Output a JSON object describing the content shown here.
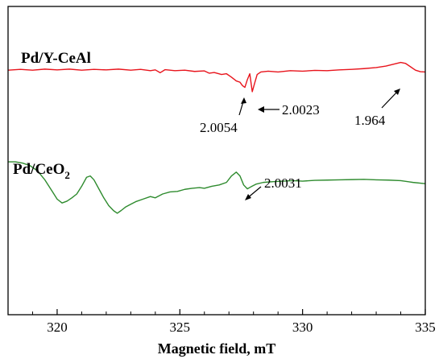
{
  "chart_data": {
    "type": "line",
    "title": "",
    "xlabel": "Magnetic field, mT",
    "ylabel": "",
    "xlim": [
      318,
      335
    ],
    "ylim": [
      0,
      12
    ],
    "x_ticks": [
      320,
      325,
      330,
      335
    ],
    "x_tick_labels": [
      "320",
      "325",
      "330",
      "335"
    ],
    "grid": false,
    "series": [
      {
        "name": "Pd/Y-CeAl",
        "label_display": "Pd/Y-CeAl",
        "color": "#e8141c",
        "points": [
          [
            318.0,
            9.52
          ],
          [
            318.5,
            9.55
          ],
          [
            319.0,
            9.52
          ],
          [
            319.5,
            9.56
          ],
          [
            320.0,
            9.53
          ],
          [
            320.5,
            9.56
          ],
          [
            321.0,
            9.52
          ],
          [
            321.5,
            9.55
          ],
          [
            322.0,
            9.53
          ],
          [
            322.5,
            9.56
          ],
          [
            323.0,
            9.52
          ],
          [
            323.4,
            9.55
          ],
          [
            323.8,
            9.5
          ],
          [
            324.0,
            9.53
          ],
          [
            324.2,
            9.42
          ],
          [
            324.4,
            9.54
          ],
          [
            324.8,
            9.5
          ],
          [
            325.2,
            9.52
          ],
          [
            325.6,
            9.47
          ],
          [
            326.0,
            9.49
          ],
          [
            326.2,
            9.4
          ],
          [
            326.4,
            9.43
          ],
          [
            326.7,
            9.35
          ],
          [
            326.9,
            9.38
          ],
          [
            327.1,
            9.25
          ],
          [
            327.3,
            9.1
          ],
          [
            327.45,
            9.05
          ],
          [
            327.55,
            8.92
          ],
          [
            327.65,
            8.85
          ],
          [
            327.75,
            9.15
          ],
          [
            327.85,
            9.38
          ],
          [
            327.95,
            8.68
          ],
          [
            328.05,
            9.02
          ],
          [
            328.15,
            9.35
          ],
          [
            328.3,
            9.45
          ],
          [
            328.6,
            9.48
          ],
          [
            329.0,
            9.45
          ],
          [
            329.5,
            9.5
          ],
          [
            330.0,
            9.48
          ],
          [
            330.5,
            9.51
          ],
          [
            331.0,
            9.5
          ],
          [
            331.5,
            9.53
          ],
          [
            332.0,
            9.55
          ],
          [
            332.5,
            9.58
          ],
          [
            333.0,
            9.62
          ],
          [
            333.4,
            9.68
          ],
          [
            333.7,
            9.75
          ],
          [
            334.0,
            9.82
          ],
          [
            334.2,
            9.78
          ],
          [
            334.4,
            9.65
          ],
          [
            334.6,
            9.52
          ],
          [
            334.8,
            9.46
          ],
          [
            335.0,
            9.45
          ]
        ]
      },
      {
        "name": "Pd/CeO2",
        "label_display": "Pd/CeO",
        "label_subscript": "2",
        "color": "#2e8b2e",
        "points": [
          [
            318.0,
            5.95
          ],
          [
            318.3,
            5.95
          ],
          [
            318.6,
            5.9
          ],
          [
            318.9,
            5.8
          ],
          [
            319.2,
            5.6
          ],
          [
            319.5,
            5.25
          ],
          [
            319.8,
            4.8
          ],
          [
            320.0,
            4.5
          ],
          [
            320.2,
            4.35
          ],
          [
            320.4,
            4.42
          ],
          [
            320.6,
            4.55
          ],
          [
            320.8,
            4.7
          ],
          [
            321.0,
            5.0
          ],
          [
            321.2,
            5.35
          ],
          [
            321.35,
            5.4
          ],
          [
            321.5,
            5.25
          ],
          [
            321.7,
            4.9
          ],
          [
            321.9,
            4.55
          ],
          [
            322.1,
            4.25
          ],
          [
            322.3,
            4.05
          ],
          [
            322.45,
            3.95
          ],
          [
            322.6,
            4.05
          ],
          [
            322.8,
            4.2
          ],
          [
            323.0,
            4.3
          ],
          [
            323.2,
            4.4
          ],
          [
            323.5,
            4.5
          ],
          [
            323.8,
            4.6
          ],
          [
            324.0,
            4.55
          ],
          [
            324.3,
            4.7
          ],
          [
            324.6,
            4.78
          ],
          [
            324.9,
            4.8
          ],
          [
            325.2,
            4.88
          ],
          [
            325.5,
            4.92
          ],
          [
            325.8,
            4.95
          ],
          [
            326.0,
            4.92
          ],
          [
            326.3,
            5.0
          ],
          [
            326.6,
            5.05
          ],
          [
            326.9,
            5.15
          ],
          [
            327.1,
            5.4
          ],
          [
            327.3,
            5.55
          ],
          [
            327.45,
            5.4
          ],
          [
            327.6,
            5.05
          ],
          [
            327.75,
            4.9
          ],
          [
            327.9,
            4.98
          ],
          [
            328.1,
            5.08
          ],
          [
            328.4,
            5.15
          ],
          [
            328.8,
            5.18
          ],
          [
            329.2,
            5.2
          ],
          [
            329.6,
            5.22
          ],
          [
            330.0,
            5.2
          ],
          [
            330.5,
            5.23
          ],
          [
            331.0,
            5.24
          ],
          [
            331.5,
            5.25
          ],
          [
            332.0,
            5.26
          ],
          [
            332.5,
            5.27
          ],
          [
            333.0,
            5.25
          ],
          [
            333.5,
            5.24
          ],
          [
            334.0,
            5.22
          ],
          [
            334.5,
            5.15
          ],
          [
            335.0,
            5.1
          ]
        ]
      }
    ],
    "annotations": [
      {
        "text": "2.0054",
        "x": 327.45
      },
      {
        "text": "2.0023",
        "x": 327.95
      },
      {
        "text": "1.964",
        "x": 334.0
      },
      {
        "text": "2.0031",
        "x": 327.3
      }
    ]
  }
}
